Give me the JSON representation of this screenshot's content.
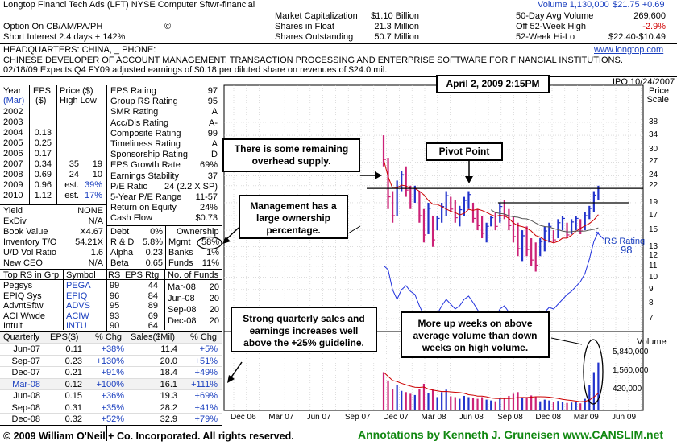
{
  "header": {
    "company": "Longtop Financl Tech Ads  (LFT)  NYSE  Computer Sftwr-financial",
    "volume_label": "Volume 1,130,000",
    "price_change": "$21.75 +0.69",
    "option": "Option On    CB/AM/PA/PH",
    "option_icon": "©",
    "short_interest": "Short Interest   2.4 days + 142%",
    "stats": [
      {
        "label": "Market Capitalization",
        "value": "$1.10 Billion"
      },
      {
        "label": "Shares in Float",
        "value": "21.3 Million"
      },
      {
        "label": "Shares Outstanding",
        "value": "50.7 Million"
      }
    ],
    "right_stats": [
      {
        "label": "50-Day Avg Volume",
        "value": "269,600"
      },
      {
        "label": "Off 52-Week High",
        "value": "-2.9%"
      },
      {
        "label": "52-Week Hi-Lo",
        "value": "$22.40-$10.49"
      }
    ],
    "headquarters": "HEADQUARTERS: CHINA, _               PHONE:",
    "website": "www.longtop.com",
    "description": "CHINESE DEVELOPER OF ACCOUNT MANAGEMENT, TRANSACTION PROCESSING AND ENTERPRISE SOFTWARE FOR FINANCIAL INSTITUTIONS.",
    "news": "02/18/09  Expects Q4 FY09 adjusted earnings of $0.18 per diluted share on revenues of $24.0 mil.",
    "ipo": "IPO 10/24/2007"
  },
  "eps_table": {
    "headers": [
      "Year",
      "EPS",
      "Price ($)"
    ],
    "subheaders": [
      "(Mar)",
      "($)",
      "High  Low"
    ],
    "rows": [
      {
        "year": "2002",
        "eps": "",
        "high": "",
        "low": ""
      },
      {
        "year": "2003",
        "eps": "",
        "high": "",
        "low": ""
      },
      {
        "year": "2004",
        "eps": "0.13",
        "high": "",
        "low": ""
      },
      {
        "year": "2005",
        "eps": "0.25",
        "high": "",
        "low": ""
      },
      {
        "year": "2006",
        "eps": "0.17",
        "high": "",
        "low": ""
      },
      {
        "year": "2007",
        "eps": "0.34",
        "high": "35",
        "low": "19"
      },
      {
        "year": "2008",
        "eps": "0.69",
        "high": "24",
        "low": "10"
      },
      {
        "year": "2009",
        "eps": "0.96",
        "high": "est.",
        "low": "39%"
      },
      {
        "year": "2010",
        "eps": "1.12",
        "high": "est.",
        "low": "17%"
      }
    ]
  },
  "ratings": [
    {
      "label": "EPS Rating",
      "value": "97"
    },
    {
      "label": "Group RS Rating",
      "value": "95"
    },
    {
      "label": "SMR Rating",
      "value": "A"
    },
    {
      "label": "Acc/Dis Rating",
      "value": "A-"
    },
    {
      "label": "Composite Rating",
      "value": "99"
    },
    {
      "label": "Timeliness Rating",
      "value": "A"
    },
    {
      "label": "Sponsorship Rating",
      "value": "D"
    },
    {
      "label": "EPS Growth Rate",
      "value": "69%"
    },
    {
      "label": "Earnings Stability",
      "value": "37"
    },
    {
      "label": "P/E Ratio",
      "value": "24 (2.2 X SP)"
    },
    {
      "label": "5-Year P/E Range",
      "value": "11-57"
    },
    {
      "label": "Return on Equity",
      "value": "24%"
    },
    {
      "label": "Cash Flow",
      "value": "$0.73"
    }
  ],
  "misc": [
    {
      "label": "Yield",
      "value": "NONE"
    },
    {
      "label": "ExDiv",
      "value": "N/A"
    },
    {
      "label": "Book Value",
      "value": "X4.67"
    },
    {
      "label": "Inventory T/O",
      "value": "54.21X"
    },
    {
      "label": "U/D Vol Ratio",
      "value": "1.6"
    },
    {
      "label": "New CEO",
      "value": "N/A"
    }
  ],
  "fin": [
    {
      "label": "Debt",
      "value": "0%"
    },
    {
      "label": "R & D",
      "value": "5.8%"
    },
    {
      "label": "Alpha",
      "value": "0.23"
    },
    {
      "label": "Beta",
      "value": "0.65"
    }
  ],
  "ownership": {
    "title": "Ownership",
    "rows": [
      {
        "label": "Mgmt",
        "value": "58%"
      },
      {
        "label": "Banks",
        "value": "1%"
      },
      {
        "label": "Funds",
        "value": "11%"
      }
    ]
  },
  "group": {
    "headers": [
      "Top RS in Grp",
      "Symbol",
      "RS",
      "EPS Rtg"
    ],
    "rows": [
      {
        "name": "Pegsys",
        "symbol": "PEGA",
        "rs": "99",
        "eps": "44"
      },
      {
        "name": "EPIQ Sys",
        "symbol": "EPIQ",
        "rs": "96",
        "eps": "84"
      },
      {
        "name": "AdvntSftw",
        "symbol": "ADVS",
        "rs": "95",
        "eps": "89"
      },
      {
        "name": "ACI Wwde",
        "symbol": "ACIW",
        "rs": "93",
        "eps": "69"
      },
      {
        "name": "Intuit",
        "symbol": "INTU",
        "rs": "90",
        "eps": "64"
      }
    ]
  },
  "funds": {
    "header": "No. of Funds",
    "rows": [
      {
        "date": "Mar-08",
        "value": "20"
      },
      {
        "date": "Jun-08",
        "value": "20"
      },
      {
        "date": "Sep-08",
        "value": "20"
      },
      {
        "date": "Dec-08",
        "value": "20"
      }
    ]
  },
  "quarterly": {
    "headers": [
      "Quarterly",
      "EPS($)",
      "% Chg",
      "Sales($Mil)",
      "% Chg"
    ],
    "rows": [
      {
        "q": "Jun-07",
        "eps": "0.11",
        "epschg": "+38%",
        "sales": "11.4",
        "saleschg": "+5%"
      },
      {
        "q": "Sep-07",
        "eps": "0.23",
        "epschg": "+130%",
        "sales": "20.0",
        "saleschg": "+51%"
      },
      {
        "q": "Dec-07",
        "eps": "0.21",
        "epschg": "+91%",
        "sales": "18.4",
        "saleschg": "+49%"
      },
      {
        "q": "Mar-08",
        "eps": "0.12",
        "epschg": "+100%",
        "sales": "16.1",
        "saleschg": "+111%"
      },
      {
        "q": "Jun-08",
        "eps": "0.15",
        "epschg": "+36%",
        "sales": "19.3",
        "saleschg": "+69%"
      },
      {
        "q": "Sep-08",
        "eps": "0.31",
        "epschg": "+35%",
        "sales": "28.2",
        "saleschg": "+41%"
      },
      {
        "q": "Dec-08",
        "eps": "0.32",
        "epschg": "+52%",
        "sales": "32.9",
        "saleschg": "+79%"
      }
    ]
  },
  "annotations": {
    "date": "April 2, 2009 2:15PM",
    "overhead": "There is some remaining overhead supply.",
    "pivot": "Pivot Point",
    "management": "Management has a large ownership percentage.",
    "sales": "Strong quarterly sales and earnings increases well above the +25% guideline.",
    "volume": "More up weeks on above average volume than down weeks on high volume."
  },
  "footer": {
    "copyright": "© 2009 William O'Neil + Co. Incorporated. All rights reserved.",
    "credit": "Annotations by Kenneth J. Gruneisen www.CANSLIM.net"
  },
  "chart_data": {
    "type": "bar",
    "title": "",
    "price_scale_title": "Price Scale",
    "volume_title": "Volume",
    "y_ticks": [
      "38",
      "34",
      "30",
      "27",
      "24",
      "22",
      "19",
      "17",
      "15",
      "13",
      "12",
      "11",
      "10",
      "9",
      "8",
      "7"
    ],
    "volume_ticks": [
      "5,840,000",
      "1,560,000",
      "420,000"
    ],
    "x_ticks": [
      "Dec 06",
      "Mar 07",
      "Jun 07",
      "Sep 07",
      "Dec 07",
      "Mar 08",
      "Jun 08",
      "Sep 08",
      "Dec 08",
      "Mar 09",
      "Jun 09"
    ],
    "rs_label": "RS Rating",
    "rs_value": "98",
    "pivot_price": 19,
    "overhead_price": 21.5,
    "colors": {
      "up": "#2233cc",
      "down": "#cc2277",
      "ma50": "#cc0000",
      "ma200": "#555555",
      "rs": "#2233dd",
      "green_link": "#118811"
    },
    "weekly": [
      {
        "hi": 34,
        "lo": 26,
        "up": false,
        "vol": 900000
      },
      {
        "hi": 28,
        "lo": 18,
        "up": false,
        "vol": 700000
      },
      {
        "hi": 21,
        "lo": 16,
        "up": false,
        "vol": 500000
      },
      {
        "hi": 23,
        "lo": 17,
        "up": true,
        "vol": 600000
      },
      {
        "hi": 25,
        "lo": 21,
        "up": true,
        "vol": 450000
      },
      {
        "hi": 26,
        "lo": 20,
        "up": false,
        "vol": 420000
      },
      {
        "hi": 22,
        "lo": 18,
        "up": false,
        "vol": 380000
      },
      {
        "hi": 22,
        "lo": 19,
        "up": true,
        "vol": 350000
      },
      {
        "hi": 21,
        "lo": 16,
        "up": false,
        "vol": 500000
      },
      {
        "hi": 18,
        "lo": 13.5,
        "up": false,
        "vol": 620000
      },
      {
        "hi": 19,
        "lo": 14.5,
        "up": true,
        "vol": 400000
      },
      {
        "hi": 17,
        "lo": 13,
        "up": false,
        "vol": 480000
      },
      {
        "hi": 17,
        "lo": 15,
        "up": true,
        "vol": 300000
      },
      {
        "hi": 19,
        "lo": 16,
        "up": true,
        "vol": 420000
      },
      {
        "hi": 21,
        "lo": 17,
        "up": true,
        "vol": 480000
      },
      {
        "hi": 20,
        "lo": 17.5,
        "up": false,
        "vol": 320000
      },
      {
        "hi": 19.5,
        "lo": 16,
        "up": false,
        "vol": 300000
      },
      {
        "hi": 18.5,
        "lo": 15.5,
        "up": true,
        "vol": 260000
      },
      {
        "hi": 20,
        "lo": 17,
        "up": true,
        "vol": 330000
      },
      {
        "hi": 21,
        "lo": 18,
        "up": true,
        "vol": 300000
      },
      {
        "hi": 19,
        "lo": 16,
        "up": false,
        "vol": 280000
      },
      {
        "hi": 18,
        "lo": 15,
        "up": false,
        "vol": 260000
      },
      {
        "hi": 17,
        "lo": 14,
        "up": false,
        "vol": 300000
      },
      {
        "hi": 16,
        "lo": 13.5,
        "up": true,
        "vol": 240000
      },
      {
        "hi": 17,
        "lo": 15.5,
        "up": true,
        "vol": 220000
      },
      {
        "hi": 17.5,
        "lo": 15,
        "up": false,
        "vol": 200000
      },
      {
        "hi": 19,
        "lo": 16,
        "up": true,
        "vol": 260000
      },
      {
        "hi": 19.5,
        "lo": 16.5,
        "up": false,
        "vol": 280000
      },
      {
        "hi": 18,
        "lo": 15,
        "up": false,
        "vol": 330000
      },
      {
        "hi": 17,
        "lo": 13.5,
        "up": false,
        "vol": 380000
      },
      {
        "hi": 16,
        "lo": 12,
        "up": false,
        "vol": 420000
      },
      {
        "hi": 15,
        "lo": 11.5,
        "up": true,
        "vol": 300000
      },
      {
        "hi": 15.5,
        "lo": 12,
        "up": false,
        "vol": 280000
      },
      {
        "hi": 14,
        "lo": 11,
        "up": false,
        "vol": 340000
      },
      {
        "hi": 13.5,
        "lo": 10.5,
        "up": false,
        "vol": 300000
      },
      {
        "hi": 14,
        "lo": 12,
        "up": true,
        "vol": 200000
      },
      {
        "hi": 15.5,
        "lo": 12.5,
        "up": true,
        "vol": 240000
      },
      {
        "hi": 16,
        "lo": 13.5,
        "up": true,
        "vol": 220000
      },
      {
        "hi": 15,
        "lo": 13.5,
        "up": false,
        "vol": 180000
      },
      {
        "hi": 16.5,
        "lo": 14,
        "up": true,
        "vol": 210000
      },
      {
        "hi": 17,
        "lo": 15,
        "up": true,
        "vol": 190000
      },
      {
        "hi": 16,
        "lo": 14,
        "up": false,
        "vol": 160000
      },
      {
        "hi": 16.5,
        "lo": 14.5,
        "up": true,
        "vol": 170000
      },
      {
        "hi": 17,
        "lo": 15,
        "up": true,
        "vol": 180000
      },
      {
        "hi": 16.5,
        "lo": 14.5,
        "up": false,
        "vol": 150000
      },
      {
        "hi": 17.5,
        "lo": 15,
        "up": true,
        "vol": 260000
      },
      {
        "hi": 18.5,
        "lo": 16.5,
        "up": true,
        "vol": 600000
      },
      {
        "hi": 21,
        "lo": 17.5,
        "up": true,
        "vol": 900000
      },
      {
        "hi": 22,
        "lo": 19.5,
        "up": true,
        "vol": 1130000
      }
    ]
  }
}
